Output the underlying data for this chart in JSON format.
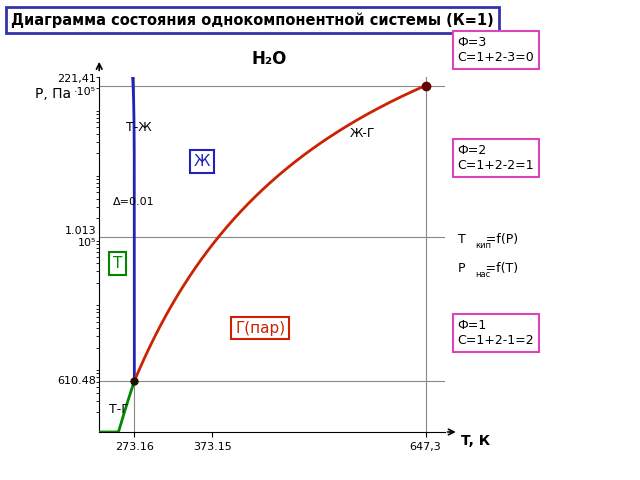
{
  "title": "Диаграмма состояния однокомпонентной системы (К=1)",
  "subtitle": "H₂O",
  "xlabel": "T, К",
  "ylabel": "P, Па",
  "triple_T": 273.16,
  "triple_P": 610.48,
  "critical_T": 647.3,
  "critical_P": 22141000,
  "atm_P": 101300,
  "boiling_T": 373.15,
  "T_min": 228,
  "T_max": 672,
  "P_min_log": 2.0,
  "P_max_log": 7.48,
  "color_title_border": "#3333aa",
  "color_blue": "#2222bb",
  "color_red": "#cc2200",
  "color_green": "#008800",
  "color_gray": "#888888",
  "color_pink": "#dd44bb",
  "bg": "#ffffff",
  "label_T_region": "Т",
  "label_Zh_region": "Ж",
  "label_G_region": "Г(пар)",
  "label_TZh": "Т-Ж",
  "label_ZhG": "Ж-Г",
  "label_TG": "Т-Г",
  "label_delta": "Δ=0.01",
  "phi3_text": "Ф=3\nС=1+2-3=0",
  "phi2_text": "Ф=2\nС=1+2-2=1",
  "phi1_text": "Ф=1\nС=1+2-1=2",
  "tkip_line1": "Т     =f(P)",
  "tkip_line2": "Р     =f(T)",
  "tkip_sub1": "кип",
  "tkip_sub2": "нас",
  "ytick1_label": "610.48",
  "ytick2_label_a": "1.013",
  "ytick2_label_b": "10⁵",
  "ytick3_label_a": "221,41",
  "ytick3_label_b": "·10⁵",
  "xtick1": "273.16",
  "xtick2": "373.15",
  "xtick3": "647,3"
}
